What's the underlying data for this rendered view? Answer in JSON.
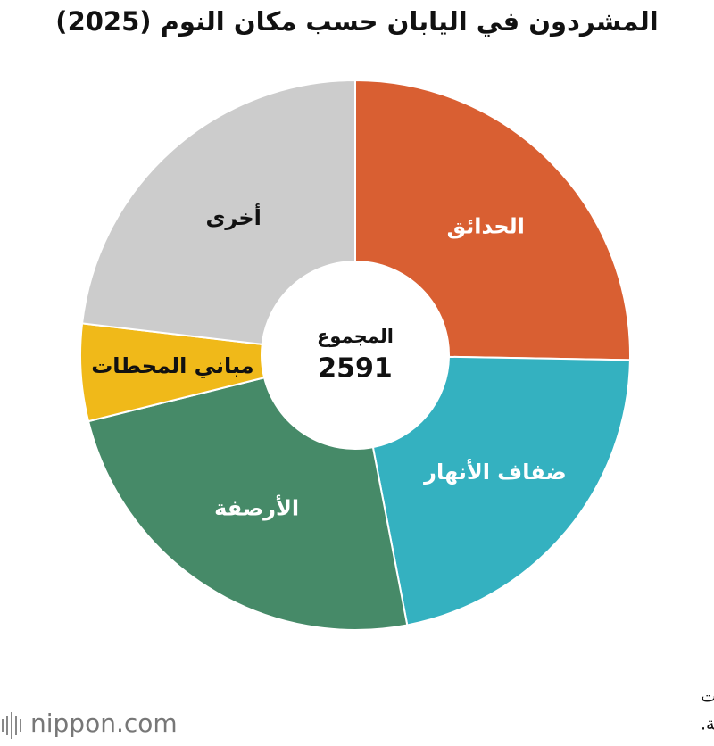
{
  "chart_data": {
    "type": "donut",
    "title": "المشردون في اليابان حسب مكان النوم (2025)",
    "categories": [
      "الحدائق",
      "ضفاف الأنهار",
      "الأرصفة",
      "مباني المحطات",
      "أخرى"
    ],
    "values": [
      655,
      562,
      626,
      148,
      600
    ],
    "colors": [
      "#d95f32",
      "#34b1c0",
      "#468a68",
      "#f0b919",
      "#cccccc"
    ],
    "label_colors": [
      "#ffffff",
      "#ffffff",
      "#ffffff",
      "#111111",
      "#111111"
    ],
    "center_label": "المجموع",
    "total": 2591
  },
  "footer": {
    "source_lines": [
      "تم إعداد البيانات بواسطة Nippon.com بناءً على بيانات",
      "من وزارة الصحة والعمل والشؤون الاجتماعية."
    ],
    "logo": "nippon.com"
  }
}
